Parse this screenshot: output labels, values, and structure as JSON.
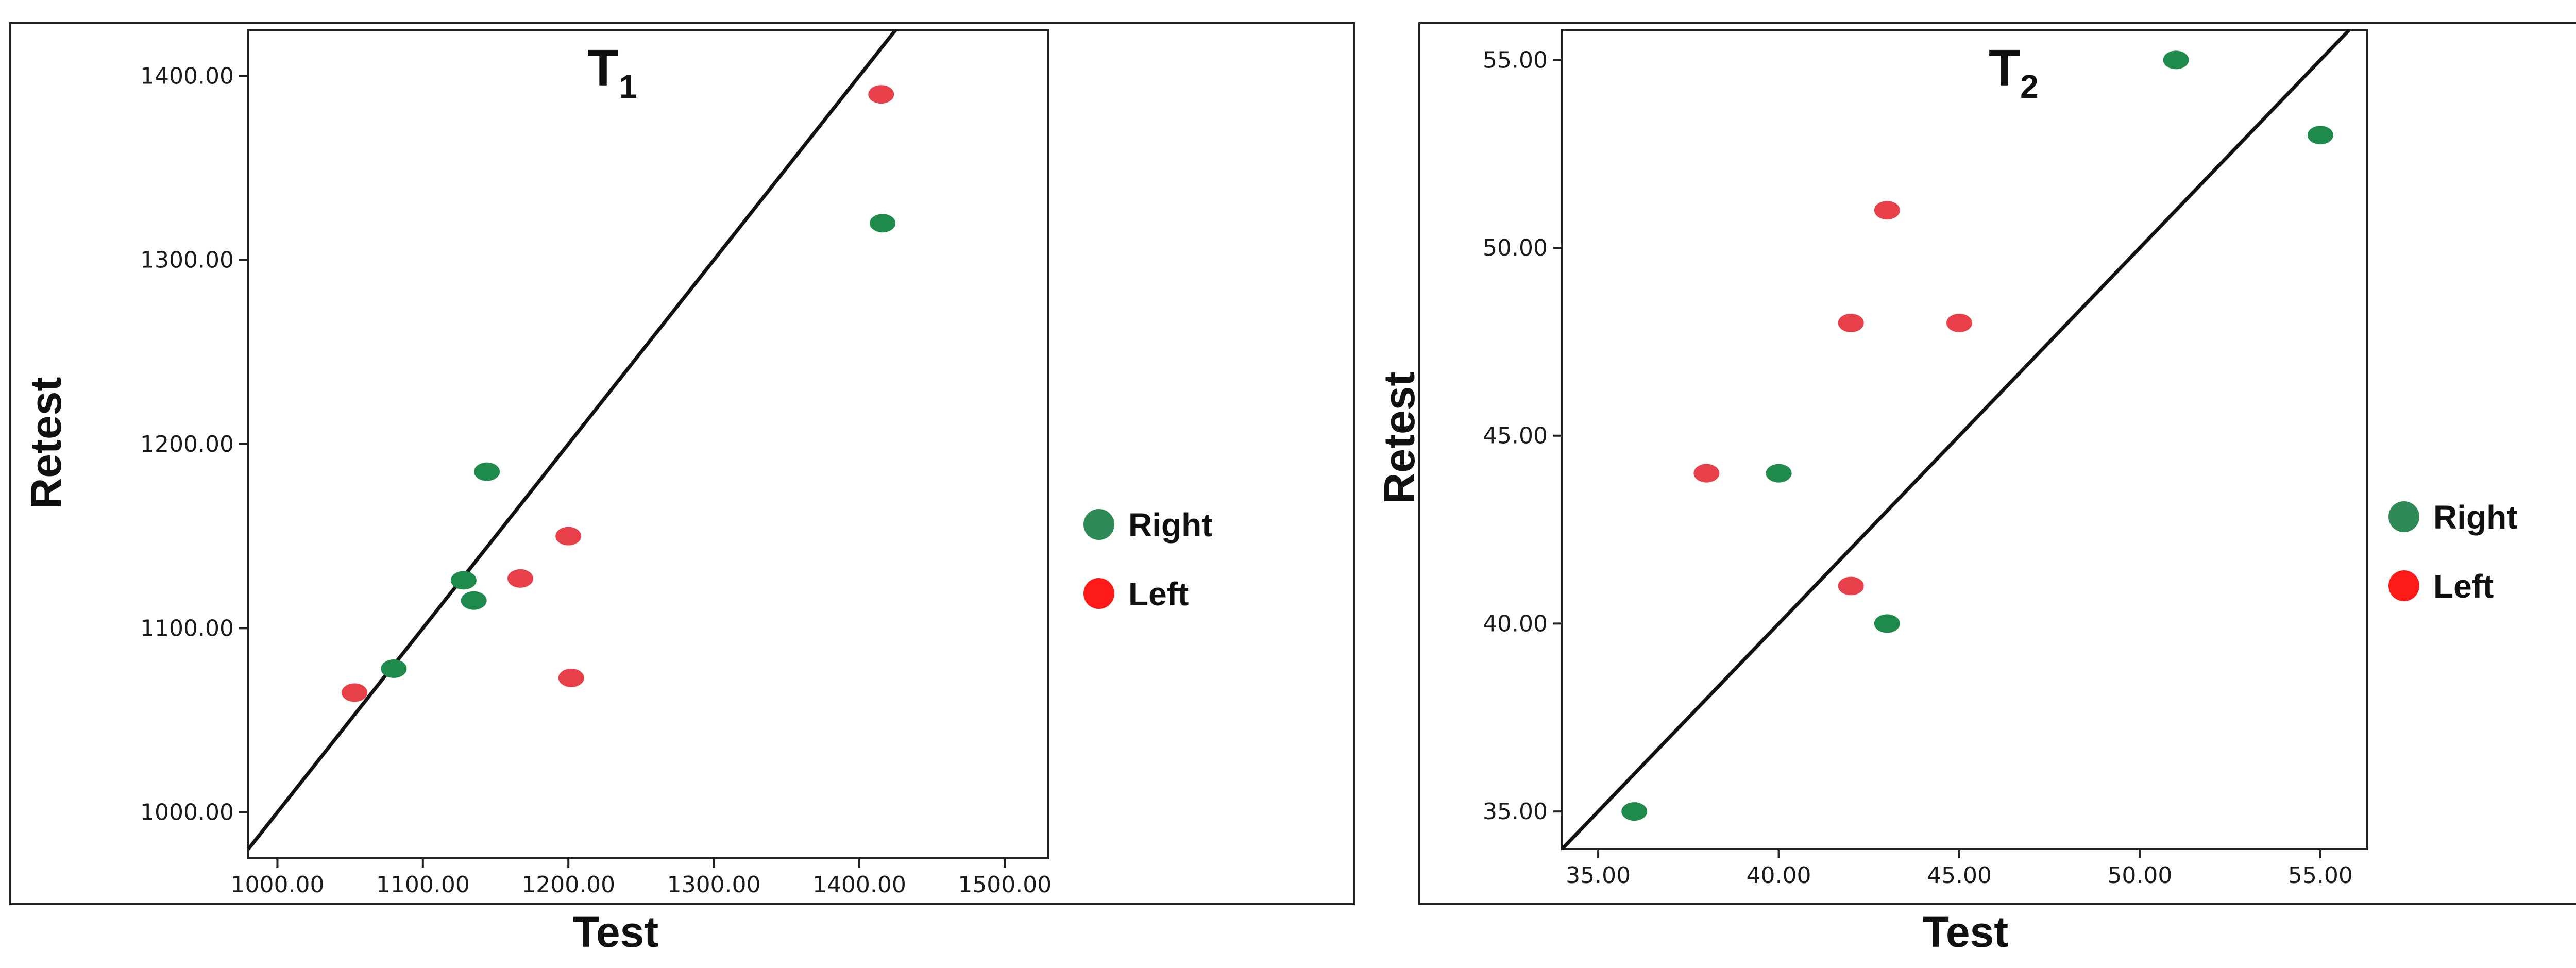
{
  "chart_data": [
    {
      "type": "scatter",
      "title": "T",
      "title_subscript": "1",
      "xlabel": "Test",
      "ylabel": "Retest",
      "xlim": [
        980,
        1530
      ],
      "ylim": [
        975,
        1425
      ],
      "xticks": [
        "1000.00",
        "1100.00",
        "1200.00",
        "1300.00",
        "1400.00",
        "1500.00"
      ],
      "yticks": [
        "1000.00",
        "1100.00",
        "1200.00",
        "1300.00",
        "1400.00"
      ],
      "reference_line": "identity",
      "grid": false,
      "legend_position": "right",
      "series": [
        {
          "name": "Right",
          "color": "#1e8a4c",
          "points": [
            [
              1080,
              1078
            ],
            [
              1128,
              1126
            ],
            [
              1135,
              1115
            ],
            [
              1144,
              1185
            ],
            [
              1416,
              1320
            ]
          ]
        },
        {
          "name": "Left",
          "color": "#e8404a",
          "points": [
            [
              1053,
              1065
            ],
            [
              1167,
              1127
            ],
            [
              1200,
              1150
            ],
            [
              1202,
              1073
            ],
            [
              1415,
              1390
            ]
          ]
        }
      ]
    },
    {
      "type": "scatter",
      "title": "T",
      "title_subscript": "2",
      "xlabel": "Test",
      "ylabel": "Retest",
      "xlim": [
        34,
        56.3
      ],
      "ylim": [
        34,
        55.8
      ],
      "xticks": [
        "35.00",
        "40.00",
        "45.00",
        "50.00",
        "55.00"
      ],
      "yticks": [
        "35.00",
        "40.00",
        "45.00",
        "50.00",
        "55.00"
      ],
      "reference_line": "identity",
      "grid": false,
      "legend_position": "right",
      "series": [
        {
          "name": "Right",
          "color": "#1e8a4c",
          "points": [
            [
              36,
              35
            ],
            [
              40,
              44
            ],
            [
              43,
              40
            ],
            [
              51,
              55
            ],
            [
              55,
              53
            ]
          ]
        },
        {
          "name": "Left",
          "color": "#e8404a",
          "points": [
            [
              38,
              44
            ],
            [
              42,
              41
            ],
            [
              42,
              48
            ],
            [
              43,
              51
            ],
            [
              45,
              48
            ]
          ]
        }
      ]
    }
  ],
  "legend_colors": {
    "right_swatch": "#2e8b57",
    "left_swatch": "#ff1a1a"
  }
}
